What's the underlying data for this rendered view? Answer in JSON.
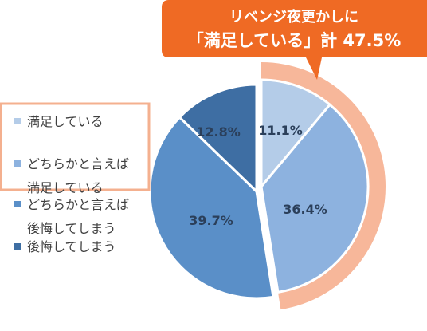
{
  "callout": {
    "line1": "リベンジ夜更かしに",
    "line2": "「満足している」計 47.5%",
    "color": "#ef6a24"
  },
  "highlight_color": "#f7b79a",
  "legend_box_color": "#f4b08f",
  "chart_data": {
    "type": "pie",
    "start": "12 o'clock, clockwise",
    "slices": [
      {
        "label": "満足している",
        "value": 11.1,
        "display": "11.1%",
        "color": "#b4cce8"
      },
      {
        "label": "どちらかと言えば満足している",
        "value": 36.4,
        "display": "36.4%",
        "color": "#8db2df"
      },
      {
        "label": "どちらかと言えば後悔してしまう",
        "value": 39.7,
        "display": "39.7%",
        "color": "#5a8fc8"
      },
      {
        "label": "後悔してしまう",
        "value": 12.8,
        "display": "12.8%",
        "color": "#3e6ea3"
      }
    ],
    "highlighted_group": {
      "label": "満足している",
      "total": 47.5
    },
    "legend": {
      "placement": "left",
      "items": [
        {
          "lines": [
            "満足している"
          ],
          "color": "#b4cce8"
        },
        {
          "lines": [
            "どちらかと言えば",
            "満足している"
          ],
          "color": "#8db2df"
        },
        {
          "lines": [
            "どちらかと言えば",
            "後悔してしまう"
          ],
          "color": "#5a8fc8"
        },
        {
          "lines": [
            "後悔してしまう"
          ],
          "color": "#3e6ea3"
        }
      ]
    }
  }
}
